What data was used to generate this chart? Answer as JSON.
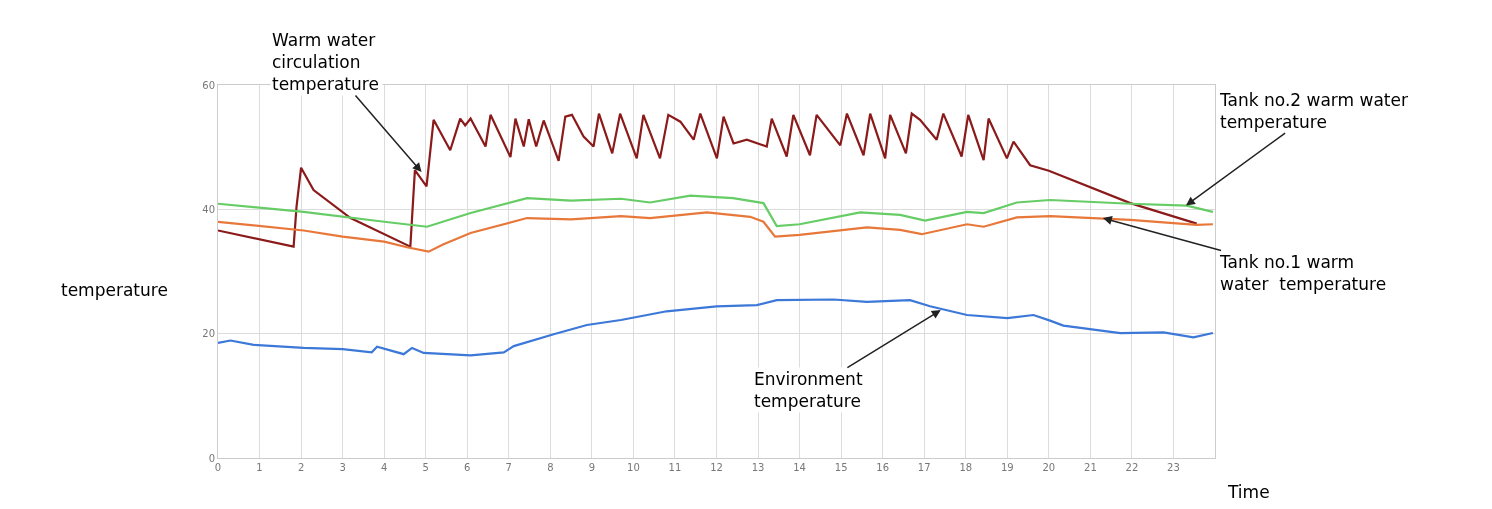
{
  "chart_data": {
    "type": "line",
    "ylabel": "temperature",
    "xlabel": "Time",
    "xlim": [
      0,
      24
    ],
    "xticks": [
      0,
      1,
      2,
      3,
      4,
      5,
      6,
      7,
      8,
      9,
      10,
      11,
      12,
      13,
      14,
      15,
      16,
      17,
      18,
      19,
      20,
      21,
      22,
      23
    ],
    "ylim": [
      0,
      60
    ],
    "yticks": [
      0,
      20,
      40,
      60
    ],
    "grid": true,
    "marker": "none",
    "line_style": "solid",
    "series": [
      {
        "color": "#8b1a1a",
        "x": [
          0,
          1.82,
          1.89,
          2.0,
          2.3,
          3.19,
          4.63,
          4.74,
          5.02,
          5.19,
          5.59,
          5.83,
          5.95,
          6.08,
          6.44,
          6.56,
          7.04,
          7.16,
          7.36,
          7.48,
          7.66,
          7.84,
          8.2,
          8.36,
          8.52,
          8.8,
          9.04,
          9.17,
          9.49,
          9.68,
          10.08,
          10.24,
          10.64,
          10.84,
          11.13,
          11.45,
          11.61,
          12.01,
          12.17,
          12.41,
          12.73,
          13.21,
          13.33,
          13.69,
          13.85,
          14.25,
          14.41,
          14.98,
          15.14,
          15.54,
          15.7,
          16.06,
          16.18,
          16.56,
          16.7,
          16.9,
          17.3,
          17.46,
          17.9,
          18.06,
          18.43,
          18.55,
          18.99,
          19.15,
          19.55,
          20.0,
          21.96,
          23.56
        ],
        "values": [
          36.6,
          34.0,
          40.4,
          46.7,
          43.1,
          38.6,
          34.0,
          46.3,
          43.7,
          54.4,
          49.5,
          54.6,
          53.5,
          54.6,
          50.1,
          55.2,
          48.4,
          54.6,
          50.1,
          54.5,
          50.1,
          54.3,
          47.8,
          54.9,
          55.2,
          51.7,
          50.1,
          55.4,
          49.0,
          55.4,
          48.2,
          55.2,
          48.2,
          55.2,
          54.1,
          51.2,
          55.4,
          48.2,
          54.9,
          50.6,
          51.2,
          50.1,
          54.6,
          48.5,
          55.2,
          48.7,
          55.2,
          50.3,
          55.4,
          48.7,
          55.4,
          48.2,
          55.2,
          49.0,
          55.4,
          54.4,
          51.2,
          55.4,
          48.5,
          55.2,
          47.9,
          54.6,
          48.2,
          50.9,
          47.1,
          46.2,
          41.0,
          37.7
        ]
      },
      {
        "color": "#66cc66",
        "x": [
          0,
          2.06,
          4,
          5.03,
          6.08,
          7.44,
          8.5,
          9.7,
          10.4,
          11.37,
          12.4,
          13.13,
          13.45,
          14.0,
          15.46,
          16.42,
          17.02,
          18.03,
          18.43,
          19.23,
          20.03,
          21.96,
          23.32,
          23.95
        ],
        "values": [
          40.9,
          39.6,
          38.0,
          37.2,
          39.4,
          41.8,
          41.4,
          41.7,
          41.1,
          42.2,
          41.8,
          41.0,
          37.3,
          37.6,
          39.5,
          39.1,
          38.2,
          39.6,
          39.4,
          41.1,
          41.5,
          40.9,
          40.6,
          39.6
        ]
      },
      {
        "color": "#e8773a",
        "x": [
          0,
          2.06,
          3.0,
          4,
          4.55,
          5.07,
          5.43,
          6.08,
          7.44,
          8.5,
          9.7,
          10.4,
          11.77,
          12.81,
          13.13,
          13.41,
          14.0,
          15.62,
          16.42,
          16.94,
          18.03,
          18.43,
          19.23,
          20.03,
          21.96,
          23.56,
          23.95
        ],
        "values": [
          38.0,
          36.6,
          35.6,
          34.8,
          33.9,
          33.2,
          34.4,
          36.2,
          38.6,
          38.4,
          38.9,
          38.6,
          39.5,
          38.8,
          38.0,
          35.6,
          35.9,
          37.1,
          36.7,
          36.0,
          37.6,
          37.2,
          38.7,
          38.9,
          38.3,
          37.5,
          37.6
        ]
      },
      {
        "color": "#3c78d8",
        "x": [
          0,
          0.3,
          0.86,
          2.06,
          3.0,
          3.7,
          3.83,
          4.47,
          4.67,
          4.95,
          6.08,
          6.88,
          7.12,
          8.08,
          8.88,
          9.7,
          10.8,
          12.0,
          12.97,
          13.45,
          14.82,
          15.62,
          16.66,
          17.14,
          18.03,
          19.0,
          19.63,
          20.03,
          20.35,
          21.72,
          22.76,
          23.48,
          23.95
        ],
        "values": [
          18.5,
          18.9,
          18.2,
          17.7,
          17.5,
          17.0,
          17.9,
          16.7,
          17.7,
          16.9,
          16.5,
          17.0,
          18.0,
          19.9,
          21.4,
          22.2,
          23.6,
          24.4,
          24.6,
          25.4,
          25.5,
          25.1,
          25.4,
          24.4,
          23.0,
          22.5,
          23.0,
          22.1,
          21.3,
          20.1,
          20.2,
          19.4,
          20.1
        ]
      }
    ],
    "annotations": [
      {
        "text": "Warm water circulation temperature",
        "x": 4.9,
        "y": 46
      },
      {
        "text": "Tank no.2 warm water temperature",
        "x": 23.3,
        "y": 40.6
      },
      {
        "text": "Tank no.1 warm water  temperature",
        "x": 21.3,
        "y": 38.6
      },
      {
        "text": "Environment temperature",
        "x": 17.4,
        "y": 23.8
      }
    ]
  }
}
